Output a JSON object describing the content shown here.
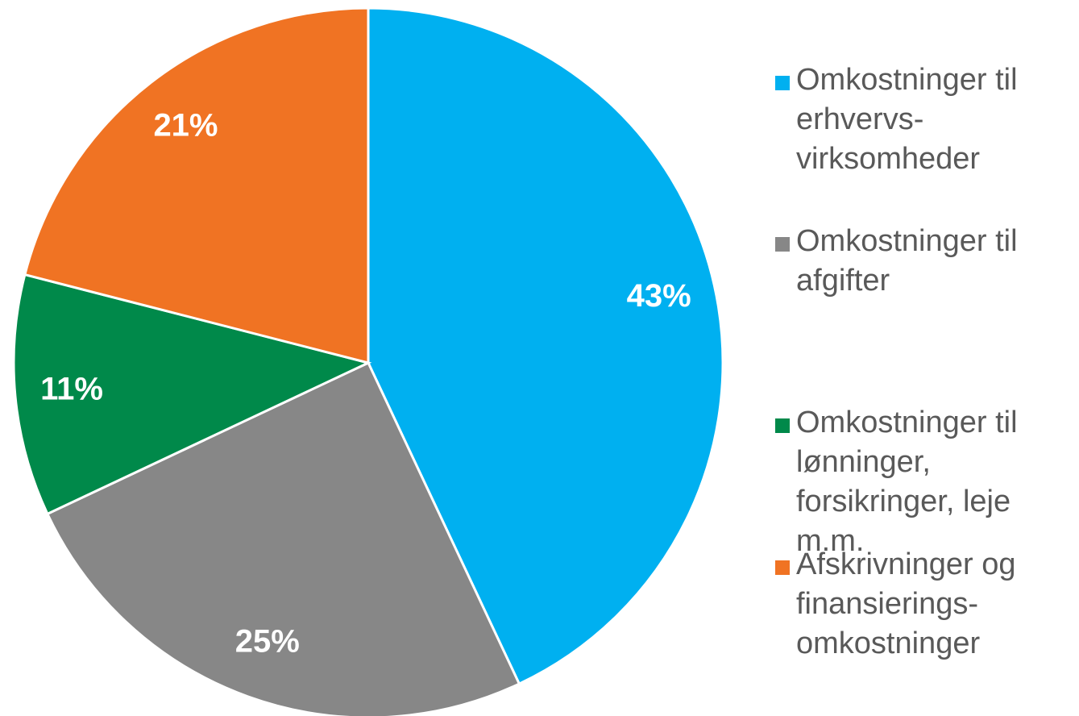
{
  "chart_data": {
    "type": "pie",
    "categories": [
      "Omkostninger til erhvervs-virksomheder",
      "Omkostninger til afgifter",
      "Omkostninger til lønninger, forsikringer, leje m.m.",
      "Afskrivninger og finansierings-omkostninger"
    ],
    "values": [
      43,
      25,
      11,
      21
    ],
    "value_labels": [
      "43%",
      "25%",
      "11%",
      "21%"
    ],
    "colors": [
      "#00b0f0",
      "#878787",
      "#00894a",
      "#f07323"
    ]
  }
}
